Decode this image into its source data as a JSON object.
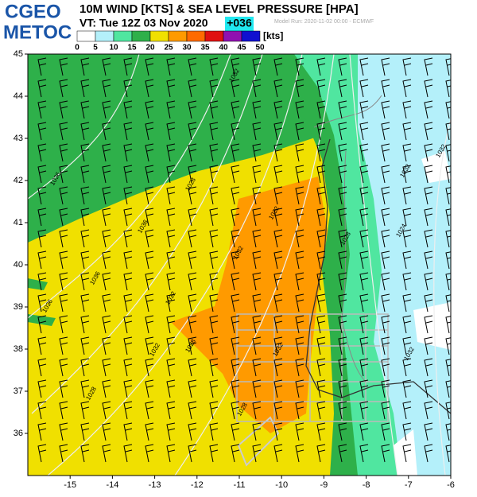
{
  "header": {
    "logo_top": "CGEO",
    "logo_bottom": "METOC",
    "title": "10M WIND [KTS] & SEA LEVEL PRESSURE [HPA]",
    "valid_time": "VT: Tue 12Z 03 Nov 2020",
    "lead": "+036",
    "model_run": "Model Run: 2020-11-02 00:00 - ECMWF"
  },
  "colorbar": {
    "ticks": [
      0,
      5,
      10,
      15,
      20,
      25,
      30,
      35,
      40,
      45,
      50
    ],
    "colors": [
      "#ffffff",
      "#b4f0fa",
      "#50e6a0",
      "#2eb04a",
      "#f0e000",
      "#ff9a00",
      "#ff6a00",
      "#e01010",
      "#9010b0",
      "#1010d0"
    ],
    "unit": "[kts]"
  },
  "map": {
    "xlim": [
      -16,
      -6
    ],
    "ylim": [
      35,
      45
    ],
    "xticks": [
      -15,
      -14,
      -13,
      -12,
      -11,
      -10,
      -9,
      -8,
      -7,
      -6
    ],
    "yticks": [
      36,
      37,
      38,
      39,
      40,
      41,
      42,
      43,
      44,
      45
    ],
    "isobar_labels": [
      1036,
      1036,
      1036,
      1036,
      1032,
      1032,
      1032,
      1032,
      1032,
      1032,
      1032,
      1028,
      1028,
      1028,
      1028,
      1028,
      1024,
      1032,
      1032
    ]
  }
}
